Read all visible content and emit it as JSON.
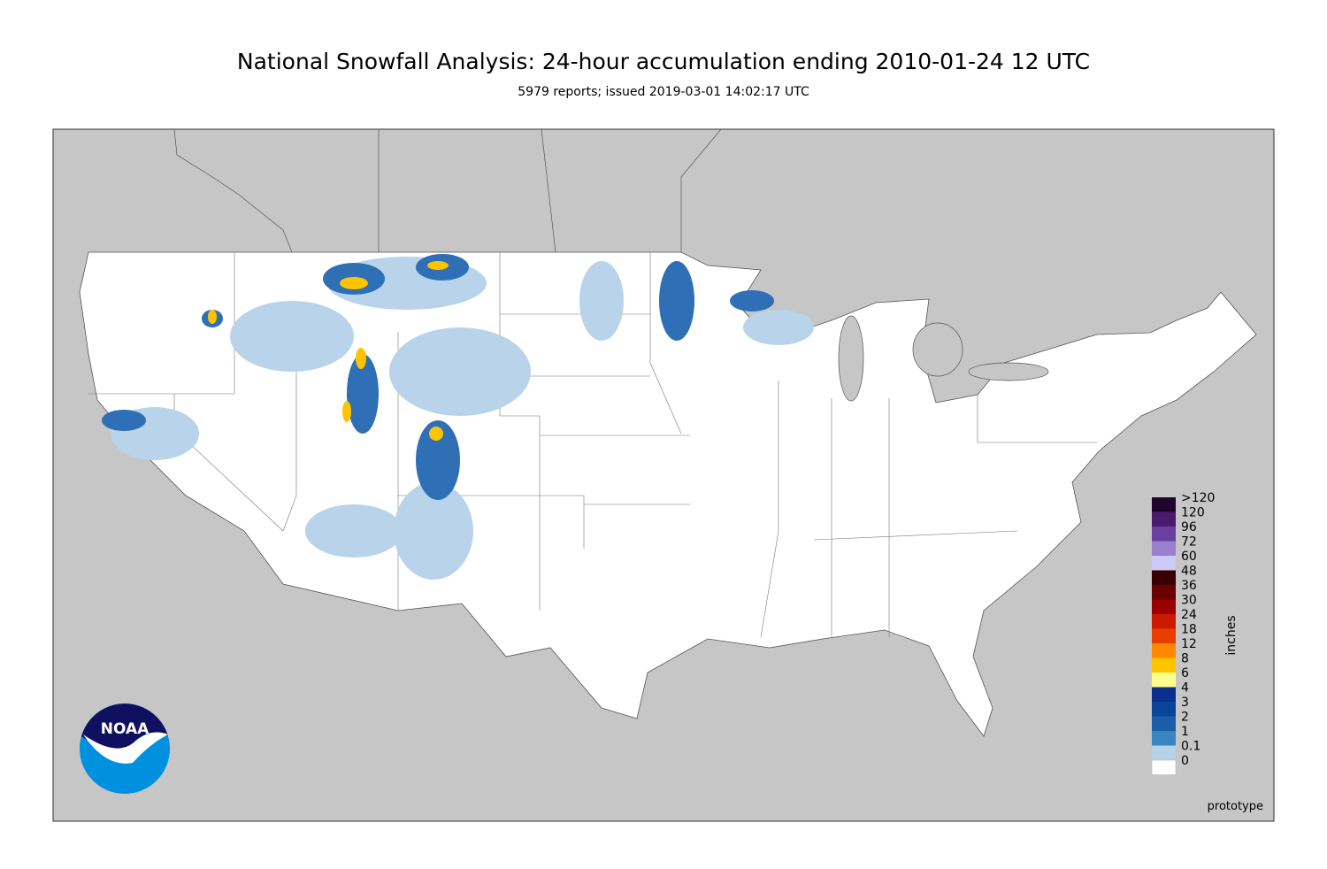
{
  "header": {
    "title": "National Snowfall Analysis: 24-hour accumulation ending 2010-01-24 12 UTC",
    "subtitle": "5979 reports; issued 2019-03-01 14:02:17 UTC"
  },
  "legend": {
    "title": "inches",
    "labels": [
      ">120",
      120,
      96,
      72,
      60,
      48,
      36,
      30,
      24,
      18,
      12,
      8,
      6,
      4,
      3,
      2,
      1,
      0.1,
      0
    ],
    "colors": [
      "#20052e",
      "#4a1a6e",
      "#6b3fa0",
      "#9a7fcf",
      "#cccaf7",
      "#3a0000",
      "#6b0000",
      "#9a0000",
      "#cc1a00",
      "#e83e00",
      "#ff8800",
      "#ffc400",
      "#ffff8c",
      "#0a2f8f",
      "#08449a",
      "#1a5ea8",
      "#3a84c4",
      "#b5d2e8",
      "#ffffff"
    ]
  },
  "logo": {
    "text": "NOAA"
  },
  "footer": {
    "note": "prototype"
  }
}
